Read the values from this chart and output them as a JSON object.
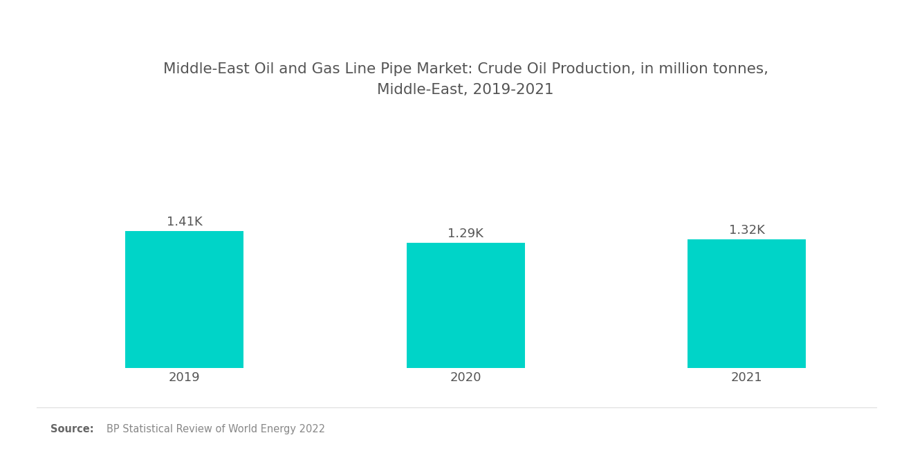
{
  "title": "Middle-East Oil and Gas Line Pipe Market: Crude Oil Production, in million tonnes,\nMiddle-East, 2019-2021",
  "categories": [
    "2019",
    "2020",
    "2021"
  ],
  "values": [
    1410,
    1290,
    1320
  ],
  "bar_labels": [
    "1.41K",
    "1.29K",
    "1.32K"
  ],
  "bar_color": "#00D4C8",
  "background_color": "#ffffff",
  "title_fontsize": 15.5,
  "label_fontsize": 13,
  "tick_fontsize": 13,
  "source_bold": "Source:",
  "source_text": "BP Statistical Review of World Energy 2022",
  "ylim": [
    0,
    2600
  ],
  "bar_width": 0.42
}
